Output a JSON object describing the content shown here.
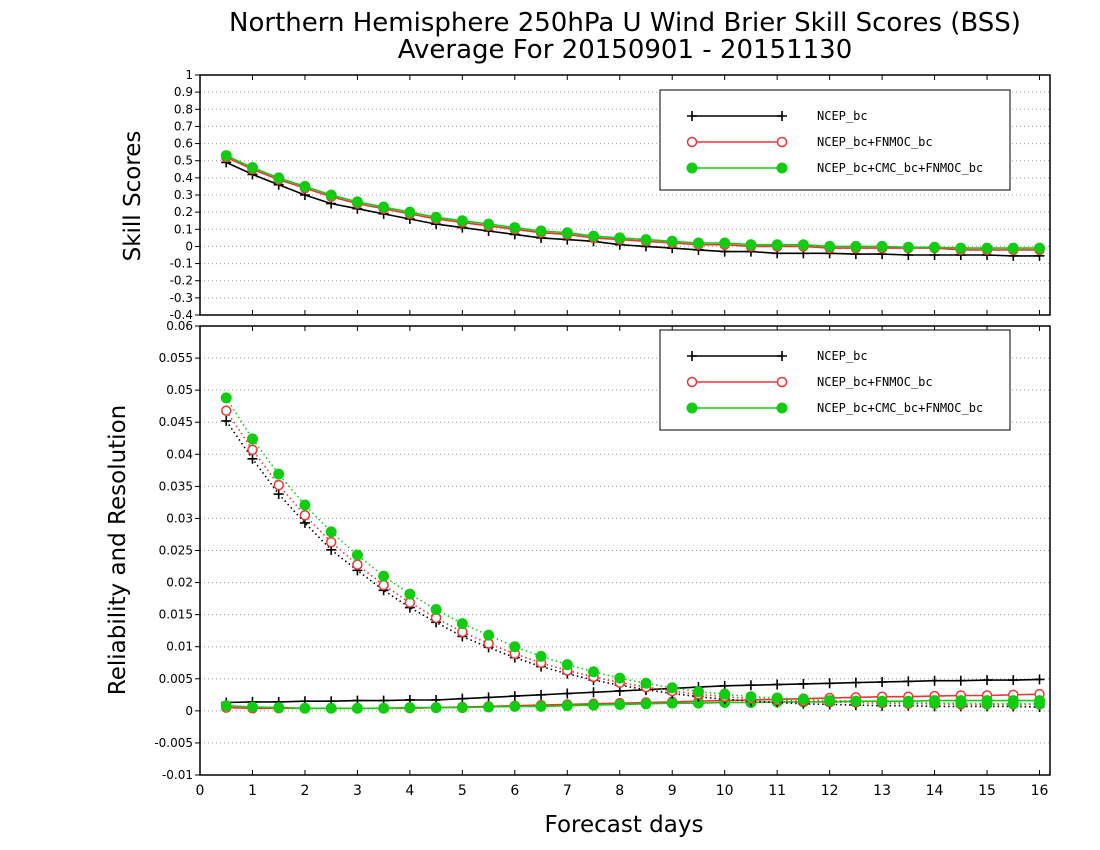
{
  "title_line1": "Northern Hemisphere 250hPa U Wind Brier Skill Scores (BSS)",
  "title_line2": "Average For 20150901 - 20151130",
  "xlabel": "Forecast days",
  "colors": {
    "ncep": "#000000",
    "fnmoc": "#ee3333",
    "cmc": "#11cc11"
  },
  "x_ticks": [
    0,
    1,
    2,
    3,
    4,
    5,
    6,
    7,
    8,
    9,
    10,
    11,
    12,
    13,
    14,
    15,
    16
  ],
  "chart_data": [
    {
      "type": "line",
      "ylabel": "Skill Scores",
      "xlim": [
        0,
        16.2
      ],
      "ylim": [
        -0.4,
        1
      ],
      "y_ticks": [
        "1",
        "0.9",
        "0.8",
        "0.7",
        "0.6",
        "0.5",
        "0.4",
        "0.3",
        "0.2",
        "0.1",
        "0",
        "-0.1",
        "-0.2",
        "-0.3",
        "-0.4"
      ],
      "legend_position": "top-right",
      "x": [
        0.5,
        1,
        1.5,
        2,
        2.5,
        3,
        3.5,
        4,
        4.5,
        5,
        5.5,
        6,
        6.5,
        7,
        7.5,
        8,
        8.5,
        9,
        9.5,
        10,
        10.5,
        11,
        11.5,
        12,
        12.5,
        13,
        13.5,
        14,
        14.5,
        15,
        15.5,
        16
      ],
      "series": [
        {
          "name": "NCEP_bc",
          "marker": "plus",
          "values": [
            0.49,
            0.42,
            0.36,
            0.3,
            0.25,
            0.22,
            0.19,
            0.16,
            0.13,
            0.11,
            0.09,
            0.07,
            0.05,
            0.04,
            0.03,
            0.01,
            0.0,
            -0.01,
            -0.02,
            -0.03,
            -0.03,
            -0.04,
            -0.04,
            -0.04,
            -0.045,
            -0.045,
            -0.05,
            -0.05,
            -0.05,
            -0.05,
            -0.055,
            -0.055
          ]
        },
        {
          "name": "NCEP_bc+FNMOC_bc",
          "marker": "open-circle",
          "values": [
            0.52,
            0.45,
            0.39,
            0.34,
            0.29,
            0.25,
            0.22,
            0.19,
            0.16,
            0.14,
            0.12,
            0.1,
            0.08,
            0.07,
            0.05,
            0.04,
            0.03,
            0.02,
            0.01,
            0.01,
            0.0,
            0.0,
            0.0,
            -0.01,
            -0.01,
            -0.01,
            -0.01,
            -0.01,
            -0.02,
            -0.02,
            -0.02,
            -0.02
          ]
        },
        {
          "name": "NCEP_bc+CMC_bc+FNMOC_bc",
          "marker": "filled-circle",
          "values": [
            0.53,
            0.46,
            0.4,
            0.35,
            0.3,
            0.26,
            0.23,
            0.2,
            0.17,
            0.15,
            0.13,
            0.11,
            0.09,
            0.08,
            0.06,
            0.05,
            0.04,
            0.03,
            0.02,
            0.02,
            0.01,
            0.01,
            0.01,
            0.0,
            0.0,
            0.0,
            -0.005,
            -0.005,
            -0.01,
            -0.01,
            -0.01,
            -0.01
          ]
        }
      ]
    },
    {
      "type": "line",
      "ylabel": "Reliability and Resolution",
      "xlim": [
        0,
        16.2
      ],
      "ylim": [
        -0.01,
        0.06
      ],
      "y_ticks": [
        "0.06",
        "0.055",
        "0.05",
        "0.045",
        "0.04",
        "0.035",
        "0.03",
        "0.025",
        "0.02",
        "0.015",
        "0.01",
        "0.005",
        "0",
        "-0.005",
        "-0.01"
      ],
      "legend_position": "top-right",
      "x": [
        0.5,
        1,
        1.5,
        2,
        2.5,
        3,
        3.5,
        4,
        4.5,
        5,
        5.5,
        6,
        6.5,
        7,
        7.5,
        8,
        8.5,
        9,
        9.5,
        10,
        10.5,
        11,
        11.5,
        12,
        12.5,
        13,
        13.5,
        14,
        14.5,
        15,
        15.5,
        16
      ],
      "series": [
        {
          "name": "NCEP_bc",
          "component": "reliability",
          "line": "solid",
          "marker": "plus",
          "values": [
            0.0013,
            0.0014,
            0.0014,
            0.0015,
            0.0015,
            0.0016,
            0.0016,
            0.0017,
            0.0017,
            0.0019,
            0.0021,
            0.0023,
            0.0025,
            0.0027,
            0.0029,
            0.0031,
            0.0033,
            0.0035,
            0.0037,
            0.0039,
            0.004,
            0.0041,
            0.0042,
            0.0043,
            0.0044,
            0.0045,
            0.0046,
            0.0047,
            0.0047,
            0.0048,
            0.0048,
            0.0049
          ]
        },
        {
          "name": "NCEP_bc+FNMOC_bc",
          "component": "reliability",
          "line": "solid",
          "marker": "open-circle",
          "values": [
            0.0005,
            0.0004,
            0.0004,
            0.0004,
            0.0004,
            0.0004,
            0.0004,
            0.0004,
            0.0005,
            0.0006,
            0.0007,
            0.0008,
            0.0009,
            0.001,
            0.0011,
            0.0012,
            0.0013,
            0.0014,
            0.0015,
            0.0016,
            0.0017,
            0.0018,
            0.0019,
            0.002,
            0.0021,
            0.0022,
            0.0022,
            0.0023,
            0.0024,
            0.0024,
            0.0025,
            0.0026
          ]
        },
        {
          "name": "NCEP_bc+CMC_bc+FNMOC_bc",
          "component": "reliability",
          "line": "solid",
          "marker": "filled-circle",
          "values": [
            0.0008,
            0.0006,
            0.0005,
            0.0004,
            0.0004,
            0.0004,
            0.0004,
            0.0005,
            0.0005,
            0.0005,
            0.0006,
            0.0007,
            0.0007,
            0.0008,
            0.0009,
            0.001,
            0.0011,
            0.0012,
            0.0012,
            0.0013,
            0.0013,
            0.0014,
            0.0014,
            0.0014,
            0.0015,
            0.0015,
            0.0015,
            0.0016,
            0.0016,
            0.0016,
            0.0016,
            0.0016
          ]
        },
        {
          "name": "NCEP_bc",
          "component": "resolution",
          "line": "dotted",
          "marker": "plus",
          "values": [
            0.0452,
            0.0393,
            0.0338,
            0.0293,
            0.0251,
            0.0219,
            0.0188,
            0.0161,
            0.0138,
            0.0116,
            0.0099,
            0.0083,
            0.0069,
            0.0058,
            0.0048,
            0.004,
            0.0033,
            0.0027,
            0.0022,
            0.0018,
            0.0015,
            0.0013,
            0.0011,
            0.001,
            0.0009,
            0.0008,
            0.0008,
            0.0007,
            0.0007,
            0.0007,
            0.0007,
            0.0006
          ]
        },
        {
          "name": "NCEP_bc+FNMOC_bc",
          "component": "resolution",
          "line": "dotted",
          "marker": "open-circle",
          "values": [
            0.0468,
            0.0407,
            0.0352,
            0.0305,
            0.0263,
            0.0228,
            0.0196,
            0.0169,
            0.0145,
            0.0123,
            0.0105,
            0.0089,
            0.0075,
            0.0063,
            0.0053,
            0.0044,
            0.0037,
            0.0031,
            0.0026,
            0.0022,
            0.0019,
            0.0017,
            0.0015,
            0.0014,
            0.0013,
            0.0012,
            0.0011,
            0.0011,
            0.001,
            0.001,
            0.001,
            0.001
          ]
        },
        {
          "name": "NCEP_bc+CMC_bc+FNMOC_bc",
          "component": "resolution",
          "line": "dotted",
          "marker": "filled-circle",
          "values": [
            0.0488,
            0.0424,
            0.0369,
            0.0321,
            0.0279,
            0.0243,
            0.021,
            0.0182,
            0.0158,
            0.0136,
            0.0118,
            0.01,
            0.0085,
            0.0072,
            0.0061,
            0.0051,
            0.0043,
            0.0036,
            0.003,
            0.0026,
            0.0022,
            0.002,
            0.0018,
            0.0016,
            0.0015,
            0.0014,
            0.0013,
            0.0012,
            0.0012,
            0.0011,
            0.0011,
            0.0011
          ]
        }
      ]
    }
  ],
  "legend": [
    "NCEP_bc",
    "NCEP_bc+FNMOC_bc",
    "NCEP_bc+CMC_bc+FNMOC_bc"
  ]
}
